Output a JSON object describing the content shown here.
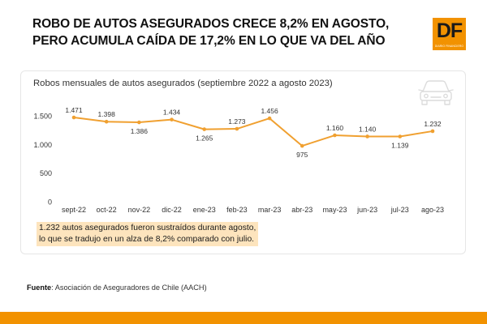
{
  "headline": {
    "line1": "ROBO DE AUTOS ASEGURADOS CRECE 8,2% EN AGOSTO,",
    "line2": "PERO ACUMULA CAÍDA DE 17,2% EN LO QUE VA DEL AÑO"
  },
  "logo": {
    "mark": "DF",
    "tagline": "DIARIO FINANCIERO"
  },
  "colors": {
    "accent": "#f29200",
    "line": "#f0a030",
    "note_bg": "#fde4bd"
  },
  "chart_data": {
    "type": "line",
    "title": "Robos mensuales de autos asegurados (septiembre 2022 a agosto 2023)",
    "categories": [
      "sept-22",
      "oct-22",
      "nov-22",
      "dic-22",
      "ene-23",
      "feb-23",
      "mar-23",
      "abr-23",
      "may-23",
      "jun-23",
      "jul-23",
      "ago-23"
    ],
    "values": [
      1471,
      1398,
      1386,
      1434,
      1265,
      1273,
      1456,
      975,
      1160,
      1140,
      1139,
      1232
    ],
    "value_labels": [
      "1.471",
      "1.398",
      "1.386",
      "1.434",
      "1.265",
      "1.273",
      "1.456",
      "975",
      "1.160",
      "1.140",
      "1.139",
      "1.232"
    ],
    "y_ticks": [
      0,
      500,
      1000,
      1500
    ],
    "y_tick_labels": [
      "0",
      "500",
      "1.000",
      "1.500"
    ],
    "ylim": [
      0,
      1500
    ],
    "grid": false,
    "icon": "car-icon"
  },
  "note": {
    "line1": "1.232 autos asegurados fueron sustraídos durante agosto,",
    "line2": "lo que se tradujo en un alza de 8,2% comparado con julio."
  },
  "source": {
    "label": "Fuente",
    "text": ": Asociación de Aseguradores de Chile (AACH)"
  }
}
